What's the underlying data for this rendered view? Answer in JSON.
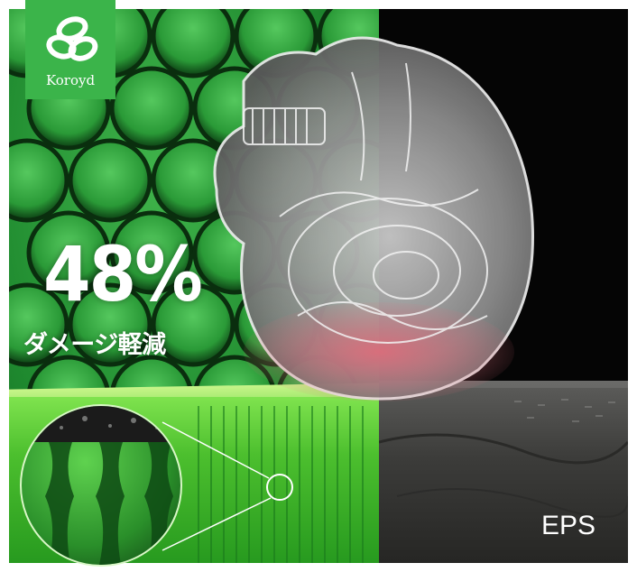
{
  "logo": {
    "brand": "Koroyd",
    "icon": "koroyd-loops-icon"
  },
  "headline": {
    "value": "48%",
    "caption": "ダメージ軽減"
  },
  "comparison": {
    "label": "EPS"
  },
  "colors": {
    "brand_green": "#3bb44a",
    "damage_red": "#e06b7a",
    "eps_gray": "#4a4a48"
  }
}
